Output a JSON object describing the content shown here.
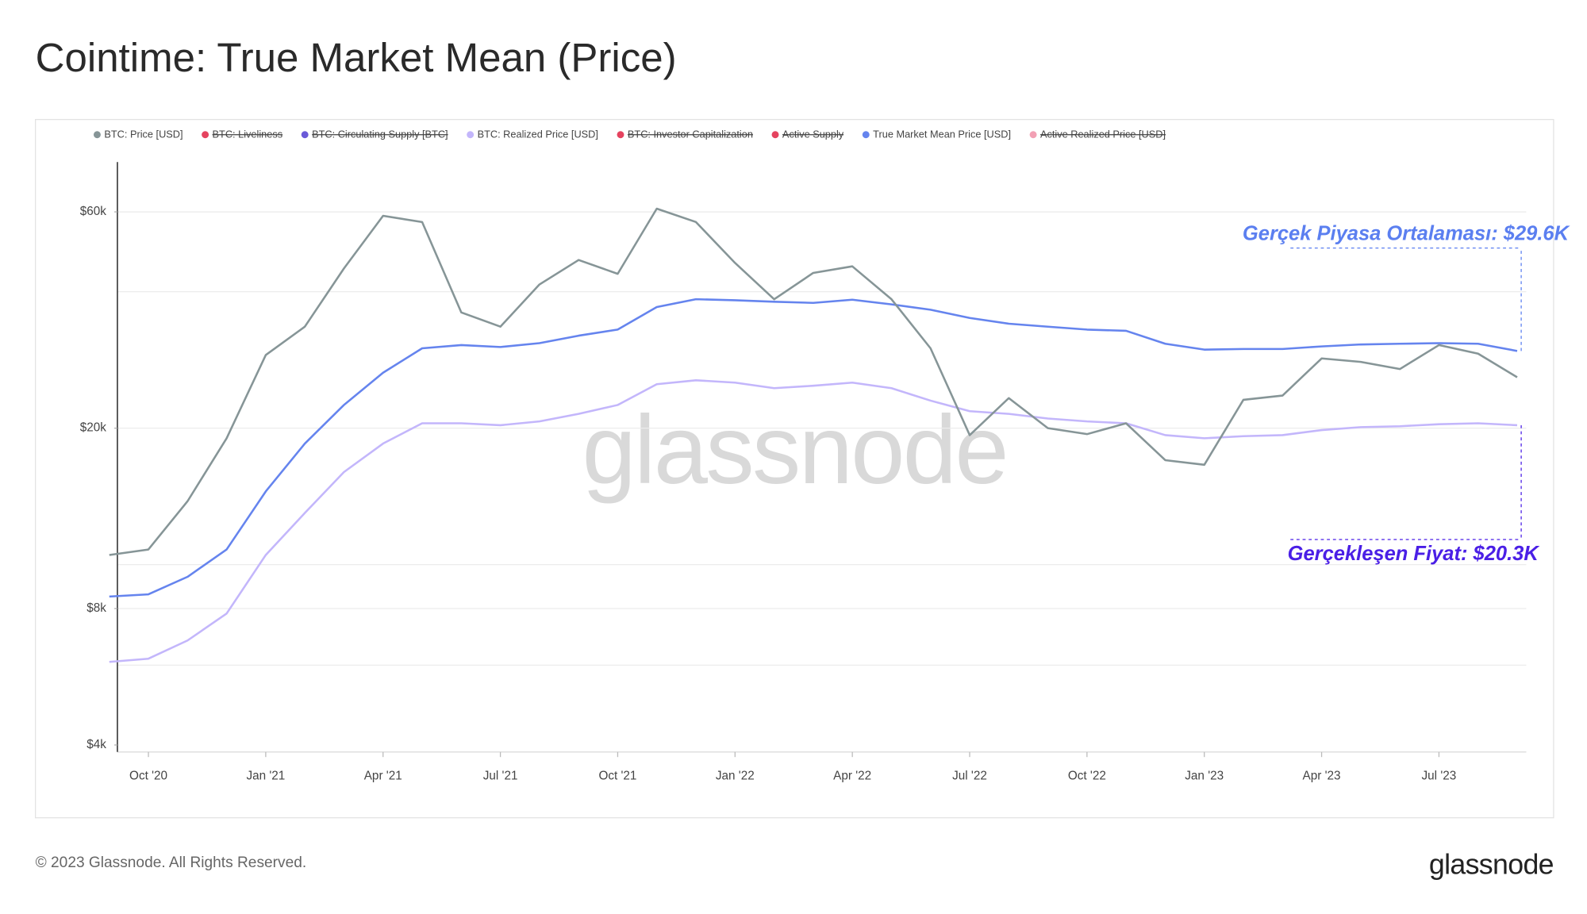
{
  "header": {
    "title": "Cointime: True Market Mean (Price)"
  },
  "footer": {
    "copyright": "© 2023 Glassnode. All Rights Reserved.",
    "logo": "glassnode"
  },
  "chart_data": {
    "type": "line",
    "watermark": "glassnode",
    "log_scale": true,
    "grid": true,
    "x": [
      "2020-09",
      "2020-10",
      "2020-11",
      "2020-12",
      "2021-01",
      "2021-02",
      "2021-03",
      "2021-04",
      "2021-05",
      "2021-06",
      "2021-07",
      "2021-08",
      "2021-09",
      "2021-10",
      "2021-11",
      "2021-12",
      "2022-01",
      "2022-02",
      "2022-03",
      "2022-04",
      "2022-05",
      "2022-06",
      "2022-07",
      "2022-08",
      "2022-09",
      "2022-10",
      "2022-11",
      "2022-12",
      "2023-01",
      "2023-02",
      "2023-03",
      "2023-04",
      "2023-05",
      "2023-06",
      "2023-07",
      "2023-08",
      "2023-09"
    ],
    "xlim": [
      "2020-09",
      "2023-09"
    ],
    "xticks": [
      {
        "value": "2020-10",
        "label": "Oct '20"
      },
      {
        "value": "2021-01",
        "label": "Jan '21"
      },
      {
        "value": "2021-04",
        "label": "Apr '21"
      },
      {
        "value": "2021-07",
        "label": "Jul '21"
      },
      {
        "value": "2021-10",
        "label": "Oct '21"
      },
      {
        "value": "2022-01",
        "label": "Jan '22"
      },
      {
        "value": "2022-04",
        "label": "Apr '22"
      },
      {
        "value": "2022-07",
        "label": "Jul '22"
      },
      {
        "value": "2022-10",
        "label": "Oct '22"
      },
      {
        "value": "2023-01",
        "label": "Jan '23"
      },
      {
        "value": "2023-04",
        "label": "Apr '23"
      },
      {
        "value": "2023-07",
        "label": "Jul '23"
      }
    ],
    "ylim": [
      3860,
      77300
    ],
    "yticks": [
      {
        "value": 4000,
        "label": "$4k"
      },
      {
        "value": 8000,
        "label": "$8k"
      },
      {
        "value": 20000,
        "label": "$20k"
      },
      {
        "value": 60000,
        "label": "$60k"
      }
    ],
    "ygrid": [
      6000,
      8000,
      10000,
      20000,
      40000,
      60000
    ],
    "series": [
      {
        "name": "BTC: Price [USD]",
        "color": "#869597",
        "visible": true,
        "values": [
          10500,
          10800,
          13800,
          19000,
          29000,
          33500,
          45000,
          58800,
          57000,
          36000,
          33500,
          41500,
          47000,
          43800,
          61000,
          57000,
          46300,
          38500,
          44000,
          45500,
          38500,
          30000,
          19300,
          23300,
          20000,
          19400,
          20500,
          17000,
          16600,
          23100,
          23600,
          28500,
          28000,
          27000,
          30500,
          29200,
          25900
        ]
      },
      {
        "name": "BTC: Liveliness",
        "color": "#e5435f",
        "visible": false
      },
      {
        "name": "BTC: Circulating Supply [BTC]",
        "color": "#6a5ad8",
        "visible": false
      },
      {
        "name": "BTC: Realized Price [USD]",
        "color": "#c3b6fb",
        "visible": true,
        "values": [
          6100,
          6200,
          6800,
          7800,
          10500,
          13000,
          16000,
          18500,
          20500,
          20500,
          20300,
          20700,
          21500,
          22500,
          25000,
          25500,
          25200,
          24500,
          24800,
          25200,
          24500,
          23000,
          21800,
          21500,
          21000,
          20700,
          20500,
          19300,
          19000,
          19200,
          19300,
          19800,
          20100,
          20200,
          20400,
          20500,
          20300
        ]
      },
      {
        "name": "BTC: Investor Capitalization",
        "color": "#e5435f",
        "visible": false
      },
      {
        "name": "Active Supply",
        "color": "#e5435f",
        "visible": false
      },
      {
        "name": "True Market Mean Price [USD]",
        "color": "#6584ee",
        "visible": true,
        "values": [
          8500,
          8600,
          9400,
          10800,
          14500,
          18500,
          22500,
          26500,
          30000,
          30500,
          30200,
          30800,
          32000,
          33000,
          37000,
          38500,
          38300,
          38000,
          37800,
          38400,
          37500,
          36500,
          35000,
          34000,
          33500,
          33000,
          32800,
          30700,
          29800,
          29900,
          29900,
          30300,
          30600,
          30700,
          30800,
          30700,
          29600
        ]
      },
      {
        "name": "Active Realized Price [USD]",
        "color": "#f2a0b4",
        "visible": false
      }
    ],
    "annotations": [
      {
        "text": "Gerçek Piyasa Ortalaması: $29.6K",
        "value": 29600,
        "color": "#5b7ff0"
      },
      {
        "text": "Gerçekleşen Fiyat: $20.3K",
        "value": 20300,
        "color": "#4a1fe6"
      }
    ]
  }
}
